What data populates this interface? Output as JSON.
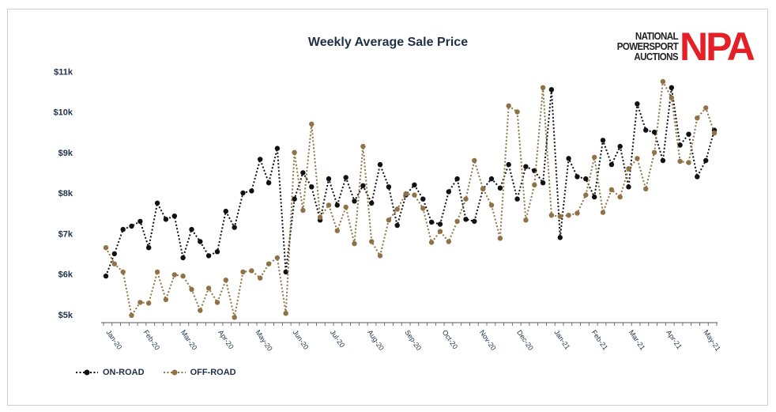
{
  "chart_data": {
    "type": "line",
    "title": "Weekly Average Sale Price",
    "ylim": [
      4800,
      11200
    ],
    "y_ticks": [
      5000,
      6000,
      7000,
      8000,
      9000,
      10000,
      11000
    ],
    "y_tick_labels": [
      "$5k",
      "$6k",
      "$7k",
      "$8k",
      "$9k",
      "$10k",
      "$11k"
    ],
    "x_tick_labels": [
      "Jan-20",
      "Feb-20",
      "Mar-20",
      "Apr-20",
      "May-20",
      "Jun-20",
      "Jul-20",
      "Aug-20",
      "Sep-20",
      "Oct-20",
      "Nov-20",
      "Dec-20",
      "Jan-21",
      "Feb-21",
      "Mar-21",
      "Apr-21",
      "May-21"
    ],
    "legend_position": "bottom-left",
    "grid": false,
    "series": [
      {
        "name": "ON-ROAD",
        "color": "#111111",
        "values": [
          5950,
          6500,
          7100,
          7180,
          7300,
          6650,
          7750,
          7350,
          7430,
          6400,
          7100,
          6800,
          6450,
          6550,
          7550,
          7150,
          8000,
          8050,
          8830,
          8250,
          9100,
          6050,
          7850,
          8500,
          8150,
          7330,
          8350,
          7700,
          8380,
          7800,
          8180,
          7750,
          8700,
          8150,
          7200,
          7950,
          8200,
          7850,
          7280,
          7230,
          8030,
          8350,
          7350,
          7300,
          8100,
          8350,
          8120,
          8700,
          7850,
          8650,
          8550,
          8250,
          10550,
          6900,
          8850,
          8400,
          8350,
          7900,
          9300,
          8700,
          9150,
          8150,
          10200,
          9550,
          9500,
          8800,
          10600,
          9180,
          9450,
          8400,
          8800,
          9550
        ]
      },
      {
        "name": "OFF-ROAD",
        "color": "#8f7347",
        "values": [
          6650,
          6250,
          6050,
          4980,
          5300,
          5280,
          6050,
          5370,
          5980,
          5950,
          5620,
          5100,
          5650,
          5300,
          5850,
          4930,
          6050,
          6080,
          5900,
          6250,
          6400,
          5030,
          9000,
          7570,
          9700,
          7400,
          7700,
          7070,
          7650,
          6750,
          9150,
          6800,
          6450,
          7330,
          7600,
          7980,
          7950,
          7620,
          6780,
          7050,
          6800,
          7300,
          7850,
          8800,
          8100,
          7700,
          6880,
          10150,
          10000,
          7330,
          8200,
          10600,
          7450,
          7420,
          7450,
          7500,
          7950,
          8880,
          7520,
          8080,
          7900,
          8600,
          8850,
          8100,
          9000,
          10750,
          10350,
          8780,
          8750,
          9850,
          10100,
          9480
        ]
      }
    ]
  }
}
